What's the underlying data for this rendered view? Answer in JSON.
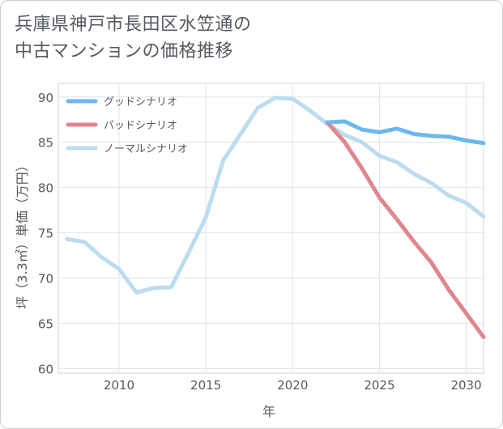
{
  "title_lines": [
    "兵庫県神戸市長田区水笠通の",
    "中古マンションの価格推移"
  ],
  "chart_data": {
    "type": "line",
    "xlabel": "年",
    "ylabel": "坪（3.3㎡）単価（万円）",
    "xlim": [
      2006.5,
      2031
    ],
    "ylim": [
      59.5,
      91.5
    ],
    "xticks": [
      2010,
      2015,
      2020,
      2025,
      2030
    ],
    "yticks": [
      60,
      65,
      70,
      75,
      80,
      85,
      90
    ],
    "grid": true,
    "legend_position": "top-left",
    "series": [
      {
        "name": "グッドシナリオ",
        "color": "#6cb8ec",
        "x": [
          2022,
          2023,
          2024,
          2025,
          2026,
          2027,
          2028,
          2029,
          2030,
          2031
        ],
        "y": [
          87.2,
          87.3,
          86.4,
          86.1,
          86.5,
          85.9,
          85.7,
          85.6,
          85.2,
          84.9
        ]
      },
      {
        "name": "バッドシナリオ",
        "color": "#e0868e",
        "x": [
          2022,
          2023,
          2024,
          2025,
          2026,
          2027,
          2028,
          2029,
          2030,
          2031
        ],
        "y": [
          87.2,
          85.0,
          82.1,
          78.9,
          76.5,
          74.0,
          71.7,
          68.7,
          66.1,
          63.5
        ]
      },
      {
        "name": "ノーマルシナリオ",
        "color": "#bcdcef",
        "x": [
          2007,
          2008,
          2009,
          2010,
          2011,
          2012,
          2013,
          2014,
          2015,
          2016,
          2017,
          2018,
          2019,
          2020,
          2021,
          2022,
          2023,
          2024,
          2025,
          2026,
          2027,
          2028,
          2029,
          2030,
          2031
        ],
        "y": [
          74.3,
          74.0,
          72.3,
          71.0,
          68.4,
          68.9,
          69.0,
          72.8,
          76.7,
          83.0,
          85.9,
          88.8,
          89.9,
          89.8,
          88.5,
          87.0,
          85.8,
          85.0,
          83.5,
          82.8,
          81.5,
          80.5,
          79.1,
          78.3,
          76.8
        ]
      }
    ]
  }
}
